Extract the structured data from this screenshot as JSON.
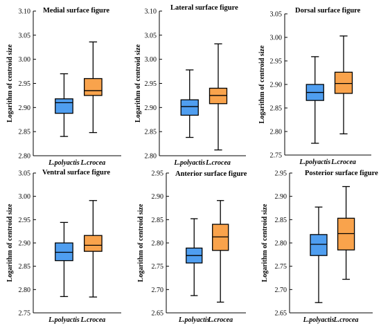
{
  "colors": {
    "series_a": "#4f9ef0",
    "series_b": "#f9a34c",
    "stroke": "#000000"
  },
  "chart_data": [
    {
      "type": "box",
      "title": "Medial surface figure",
      "ylabel": "Logarithm of centroid size",
      "categories": [
        "L.polyactis",
        "L.crocea"
      ],
      "ylim": [
        2.8,
        3.1
      ],
      "yticks": [
        "2.80",
        "2.85",
        "2.90",
        "2.95",
        "3.00",
        "3.05",
        "3.10"
      ],
      "boxes": [
        {
          "min": 2.84,
          "q1": 2.888,
          "median": 2.91,
          "q3": 2.918,
          "max": 2.97
        },
        {
          "min": 2.848,
          "q1": 2.925,
          "median": 2.935,
          "q3": 2.96,
          "max": 3.036
        }
      ]
    },
    {
      "type": "box",
      "title": "Lateral surface figure",
      "ylabel": "Logarithm of centroid size",
      "categories": [
        "L.polyactis",
        "L.crocea"
      ],
      "ylim": [
        2.8,
        3.1
      ],
      "yticks": [
        "2.80",
        "2.85",
        "2.90",
        "2.95",
        "3.00",
        "3.05",
        "3.10"
      ],
      "boxes": [
        {
          "min": 2.838,
          "q1": 2.884,
          "median": 2.902,
          "q3": 2.916,
          "max": 2.978
        },
        {
          "min": 2.812,
          "q1": 2.908,
          "median": 2.925,
          "q3": 2.94,
          "max": 3.032
        }
      ]
    },
    {
      "type": "box",
      "title": "Dorsal surface figure",
      "ylabel": "Logarithm of centroid size",
      "categories": [
        "L.polyactis",
        "L.crocea"
      ],
      "ylim": [
        2.75,
        3.05
      ],
      "yticks": [
        "2.75",
        "2.80",
        "2.85",
        "2.90",
        "2.95",
        "3.00",
        "3.05"
      ],
      "boxes": [
        {
          "min": 2.775,
          "q1": 2.866,
          "median": 2.883,
          "q3": 2.9,
          "max": 2.959
        },
        {
          "min": 2.795,
          "q1": 2.881,
          "median": 2.902,
          "q3": 2.926,
          "max": 3.003
        }
      ]
    },
    {
      "type": "box",
      "title": "Ventral surface figure",
      "ylabel": "Logarithm of centroid size",
      "categories": [
        "L.polyactis",
        "L.crocea"
      ],
      "ylim": [
        2.75,
        3.05
      ],
      "yticks": [
        "2.75",
        "2.80",
        "2.85",
        "2.90",
        "2.95",
        "3.00",
        "3.05"
      ],
      "boxes": [
        {
          "min": 2.785,
          "q1": 2.862,
          "median": 2.88,
          "q3": 2.9,
          "max": 2.944
        },
        {
          "min": 2.784,
          "q1": 2.882,
          "median": 2.895,
          "q3": 2.916,
          "max": 2.991
        }
      ]
    },
    {
      "type": "box",
      "title": "Anterior surface figure",
      "ylabel": "Logarithm of centroid size",
      "categories": [
        "L.polyactis",
        "L.crocea"
      ],
      "ylim": [
        2.65,
        2.95
      ],
      "yticks": [
        "2.65",
        "2.70",
        "2.75",
        "2.80",
        "2.85",
        "2.90",
        "2.95"
      ],
      "boxes": [
        {
          "min": 2.687,
          "q1": 2.757,
          "median": 2.773,
          "q3": 2.789,
          "max": 2.852
        },
        {
          "min": 2.673,
          "q1": 2.784,
          "median": 2.813,
          "q3": 2.84,
          "max": 2.891
        }
      ]
    },
    {
      "type": "box",
      "title": "Posterior surface figure",
      "ylabel": "Logarithm of centroid size",
      "categories": [
        "L.polyactis",
        "L.crocea"
      ],
      "ylim": [
        2.65,
        2.95
      ],
      "yticks": [
        "2.65",
        "2.70",
        "2.75",
        "2.80",
        "2.85",
        "2.90",
        "2.95"
      ],
      "boxes": [
        {
          "min": 2.672,
          "q1": 2.773,
          "median": 2.797,
          "q3": 2.818,
          "max": 2.877
        },
        {
          "min": 2.722,
          "q1": 2.785,
          "median": 2.82,
          "q3": 2.853,
          "max": 2.921
        }
      ]
    }
  ]
}
